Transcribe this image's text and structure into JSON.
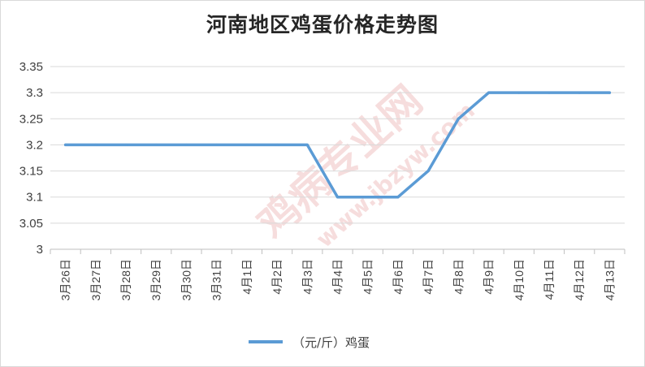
{
  "chart_data": {
    "type": "line",
    "title": "河南地区鸡蛋价格走势图",
    "categories": [
      "3月26日",
      "3月27日",
      "3月28日",
      "3月29日",
      "3月30日",
      "3月31日",
      "4月1日",
      "4月2日",
      "4月3日",
      "4月4日",
      "4月5日",
      "4月6日",
      "4月7日",
      "4月8日",
      "4月9日",
      "4月10日",
      "4月11日",
      "4月12日",
      "4月13日"
    ],
    "series": [
      {
        "name": "（元/斤）鸡蛋",
        "color": "#5b9bd5",
        "values": [
          3.2,
          3.2,
          3.2,
          3.2,
          3.2,
          3.2,
          3.2,
          3.2,
          3.2,
          3.1,
          3.1,
          3.1,
          3.15,
          3.25,
          3.3,
          3.3,
          3.3,
          3.3,
          3.3
        ]
      }
    ],
    "ylim": [
      3,
      3.35
    ],
    "yticks": [
      "3",
      "3.05",
      "3.1",
      "3.15",
      "3.2",
      "3.25",
      "3.3",
      "3.35"
    ],
    "grid": true,
    "legend": "bottom",
    "xlabel": "",
    "ylabel": ""
  },
  "watermark": {
    "lines": [
      "鸡病专业网",
      "www.jbzyw.com"
    ],
    "color": "#e8a0a0"
  }
}
